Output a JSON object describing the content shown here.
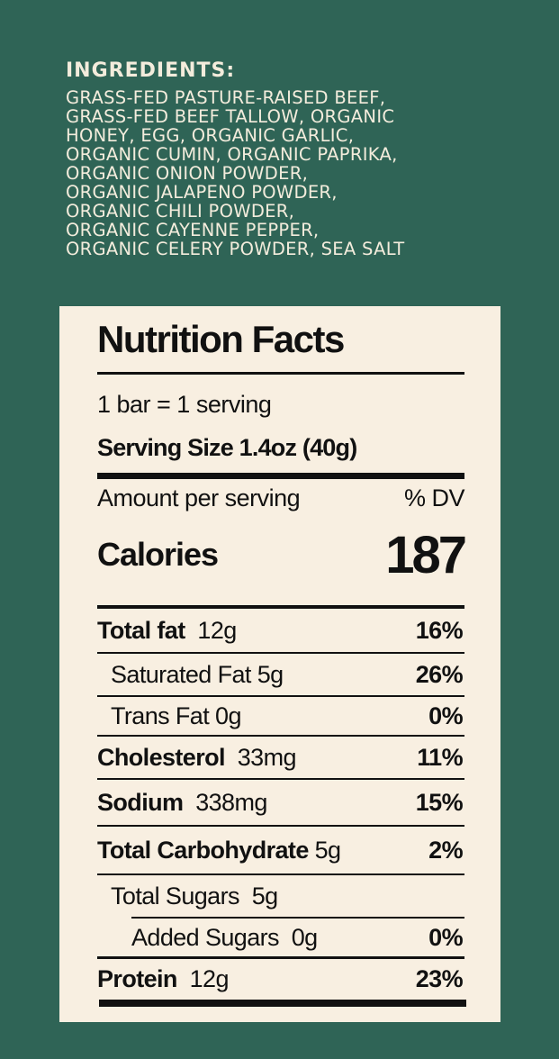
{
  "ingredients": {
    "title": "INGREDIENTS:",
    "lines": [
      "GRASS-FED PASTURE-RAISED BEEF,",
      "GRASS-FED BEEF TALLOW, ORGANIC",
      "HONEY, EGG, ORGANIC GARLIC,",
      "ORGANIC CUMIN, ORGANIC PAPRIKA,",
      "ORGANIC ONION POWDER,",
      "ORGANIC JALAPENO POWDER,",
      "ORGANIC CHILI POWDER,",
      "ORGANIC CAYENNE PEPPER,",
      "ORGANIC CELERY POWDER, SEA SALT"
    ]
  },
  "nutrition": {
    "title": "Nutrition Facts",
    "servings": "1 bar = 1 serving",
    "serving_size": "Serving Size 1.4oz (40g)",
    "amount_label": "Amount per serving",
    "dv_label": "% DV",
    "calories_label": "Calories",
    "calories_value": "187",
    "rows": [
      {
        "label": "Total fat",
        "amount": "12g",
        "pct": "16%"
      },
      {
        "label": "Saturated Fat 5g",
        "amount": "",
        "pct": "26%"
      },
      {
        "label": "Trans Fat 0g",
        "amount": "",
        "pct": "0%"
      },
      {
        "label": "Cholesterol",
        "amount": "33mg",
        "pct": "11%"
      },
      {
        "label": "Sodium",
        "amount": "338mg",
        "pct": "15%"
      },
      {
        "label": "Total Carbohydrate",
        "amount": "5g",
        "pct": "2%"
      },
      {
        "label": "Total Sugars",
        "amount": "5g",
        "pct": ""
      },
      {
        "label": "Added Sugars",
        "amount": "0g",
        "pct": "0%"
      },
      {
        "label": "Protein",
        "amount": "12g",
        "pct": "23%"
      }
    ]
  }
}
